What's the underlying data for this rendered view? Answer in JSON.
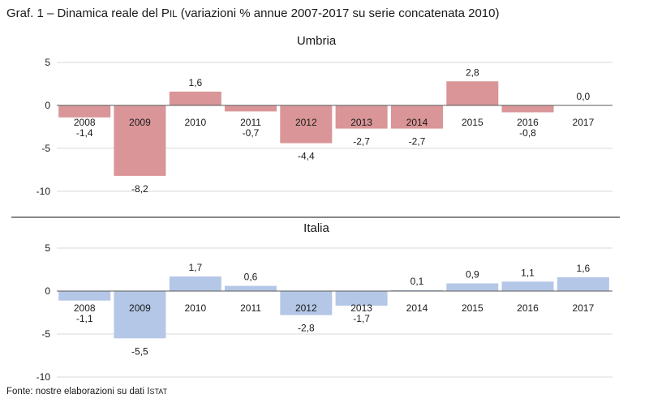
{
  "figure": {
    "title_main": "Graf. 1 – Dinamica reale del P",
    "title_sc": "IL",
    "title_rest": " (variazioni % annue 2007-2017 su serie concatenata 2010)",
    "source_main": "Fonte: nostre elaborazioni su dati I",
    "source_sc": "STAT"
  },
  "chart_data": [
    {
      "type": "bar",
      "title": "Umbria",
      "categories": [
        "2008",
        "2009",
        "2010",
        "2011",
        "2012",
        "2013",
        "2014",
        "2015",
        "2016",
        "2017"
      ],
      "values": [
        -1.4,
        -8.2,
        1.6,
        -0.7,
        -4.4,
        -2.7,
        -2.7,
        2.8,
        -0.8,
        0.0
      ],
      "value_labels": [
        "-1,4",
        "-8,2",
        "1,6",
        "-0,7",
        "-4,4",
        "-2,7",
        "-2,7",
        "2,8",
        "-0,8",
        "0,0"
      ],
      "yticks": [
        "5",
        "0",
        "-5",
        "-10"
      ],
      "ylim": [
        -10,
        5
      ],
      "grid": true,
      "bar_color": "#d99597"
    },
    {
      "type": "bar",
      "title": "Italia",
      "categories": [
        "2008",
        "2009",
        "2010",
        "2011",
        "2012",
        "2013",
        "2014",
        "2015",
        "2016",
        "2017"
      ],
      "values": [
        -1.1,
        -5.5,
        1.7,
        0.6,
        -2.8,
        -1.7,
        0.1,
        0.9,
        1.1,
        1.6
      ],
      "value_labels": [
        "-1,1",
        "-5,5",
        "1,7",
        "0,6",
        "-2,8",
        "-1,7",
        "0,1",
        "0,9",
        "1,1",
        "1,6"
      ],
      "yticks": [
        "5",
        "0",
        "-5",
        "-10"
      ],
      "ylim": [
        -10,
        5
      ],
      "grid": true,
      "bar_color": "#b4c7e7"
    }
  ]
}
